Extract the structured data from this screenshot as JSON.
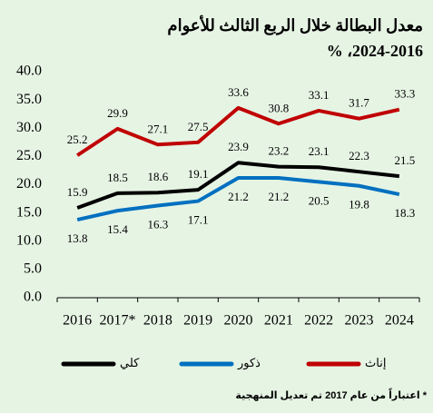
{
  "chart_data": {
    "type": "line",
    "title": "معدل البطالة خلال الربع الثالث للأعوام",
    "subtitle": "2024-2016، %",
    "categories": [
      "2016",
      "2017*",
      "2018",
      "2019",
      "2020",
      "2021",
      "2022",
      "2023",
      "2024"
    ],
    "series": [
      {
        "name": "كلي",
        "color": "#000000",
        "values": [
          15.9,
          18.5,
          18.6,
          19.1,
          23.9,
          23.2,
          23.1,
          22.3,
          21.5
        ]
      },
      {
        "name": "ذكور",
        "color": "#0070c0",
        "values": [
          13.8,
          15.4,
          16.3,
          17.1,
          21.2,
          21.2,
          20.5,
          19.8,
          18.3
        ]
      },
      {
        "name": "إناث",
        "color": "#c00000",
        "values": [
          25.2,
          29.9,
          27.1,
          27.5,
          33.6,
          30.8,
          33.1,
          31.7,
          33.3
        ]
      }
    ],
    "ylim": [
      0,
      40
    ],
    "yticks": [
      {
        "value": 0,
        "label": "0.0"
      },
      {
        "value": 5,
        "label": "5.0"
      },
      {
        "value": 10,
        "label": "10.0"
      },
      {
        "value": 15,
        "label": "15.0"
      },
      {
        "value": 20,
        "label": "20.0"
      },
      {
        "value": 25,
        "label": "25.0"
      },
      {
        "value": 30,
        "label": "30.0"
      },
      {
        "value": 35,
        "label": "35.0"
      },
      {
        "value": 40,
        "label": "40.0"
      }
    ],
    "grid": false,
    "note": "* اعتباراً من عام 2017 تم تعديل المنهجية"
  }
}
